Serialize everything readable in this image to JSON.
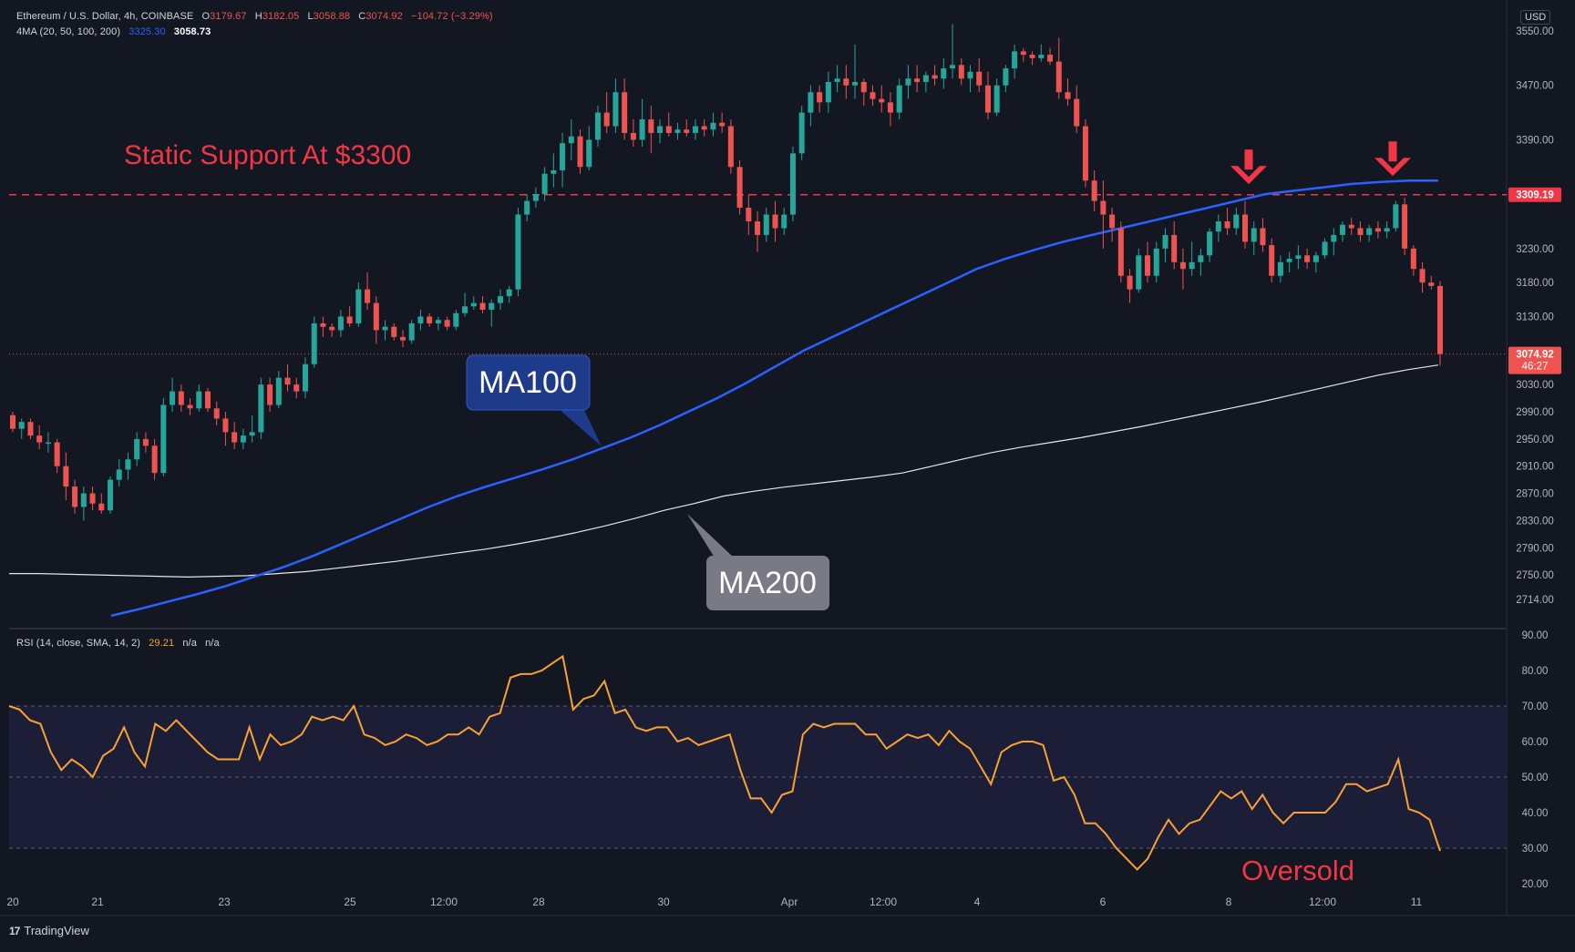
{
  "header": {
    "symbol": "Ethereum / U.S. Dollar, 4h, COINBASE",
    "o_label": "O",
    "o": "3179.67",
    "h_label": "H",
    "h": "3182.05",
    "l_label": "L",
    "l": "3058.88",
    "c_label": "C",
    "c": "3074.92",
    "change": "−104.72 (−3.29%)",
    "ma_label": "4MA (20, 50, 100, 200)",
    "ma100_value": "3325.30",
    "ma200_value": "3058.73",
    "rsi_label": "RSI (14, close, SMA, 14, 2)",
    "rsi_value": "29.21",
    "rsi_na1": "n/a",
    "rsi_na2": "n/a",
    "currency": "USD"
  },
  "footer": {
    "brand": "TradingView",
    "logo": "17"
  },
  "colors": {
    "bg": "#131722",
    "up": "#26a69a",
    "down": "#ef5350",
    "ma100": "#2962ff",
    "ma200": "#e6e6e6",
    "rsi": "#f7a233",
    "annot_red": "#f23645"
  },
  "chart_data": [
    {
      "type": "candlestick",
      "title": "Ethereum / U.S. Dollar, 4h, COINBASE",
      "price_axis": {
        "ticks": [
          3550,
          3470,
          3390,
          3309.19,
          3230,
          3180,
          3130,
          3074.92,
          3030,
          2990,
          2950,
          2910,
          2870,
          2830,
          2790,
          2750,
          2714
        ],
        "tick_labels": [
          "3550.00",
          "3470.00",
          "3390.00",
          "3309.19",
          "3230.00",
          "3180.00",
          "3130.00",
          "3074.92",
          "3030.00",
          "2990.00",
          "2950.00",
          "2910.00",
          "2870.00",
          "2830.00",
          "2790.00",
          "2750.00",
          "2714.00"
        ]
      },
      "time_axis": {
        "labels": [
          "20",
          "21",
          "23",
          "25",
          "12:00",
          "28",
          "30",
          "Apr",
          "12:00",
          "4",
          "6",
          "8",
          "12:00",
          "11"
        ]
      },
      "highlighted_prices": {
        "support": "3309.19",
        "last": "3074.92",
        "countdown": "46:27"
      },
      "candles": [
        [
          2985,
          2990,
          2960,
          2965
        ],
        [
          2965,
          2980,
          2950,
          2975
        ],
        [
          2975,
          2980,
          2950,
          2955
        ],
        [
          2955,
          2970,
          2935,
          2945
        ],
        [
          2945,
          2960,
          2930,
          2945
        ],
        [
          2945,
          2950,
          2900,
          2910
        ],
        [
          2910,
          2930,
          2860,
          2880
        ],
        [
          2880,
          2890,
          2840,
          2850
        ],
        [
          2850,
          2880,
          2830,
          2870
        ],
        [
          2870,
          2880,
          2845,
          2855
        ],
        [
          2855,
          2870,
          2840,
          2845
        ],
        [
          2845,
          2895,
          2840,
          2890
        ],
        [
          2890,
          2920,
          2880,
          2905
        ],
        [
          2905,
          2930,
          2890,
          2920
        ],
        [
          2920,
          2960,
          2910,
          2950
        ],
        [
          2950,
          2960,
          2930,
          2940
        ],
        [
          2940,
          2950,
          2890,
          2900
        ],
        [
          2900,
          3010,
          2895,
          3000
        ],
        [
          3000,
          3040,
          2990,
          3020
        ],
        [
          3020,
          3030,
          2990,
          3000
        ],
        [
          3000,
          3010,
          2985,
          2995
        ],
        [
          2995,
          3030,
          2990,
          3020
        ],
        [
          3020,
          3025,
          2990,
          2995
        ],
        [
          2995,
          3005,
          2970,
          2980
        ],
        [
          2980,
          2990,
          2940,
          2960
        ],
        [
          2960,
          2975,
          2935,
          2945
        ],
        [
          2945,
          2965,
          2935,
          2955
        ],
        [
          2955,
          2985,
          2945,
          2960
        ],
        [
          2960,
          3040,
          2950,
          3030
        ],
        [
          3030,
          3040,
          2990,
          3000
        ],
        [
          3000,
          3050,
          2995,
          3040
        ],
        [
          3040,
          3060,
          3020,
          3030
        ],
        [
          3030,
          3040,
          3010,
          3020
        ],
        [
          3020,
          3070,
          3010,
          3060
        ],
        [
          3060,
          3130,
          3055,
          3120
        ],
        [
          3120,
          3130,
          3100,
          3115
        ],
        [
          3115,
          3120,
          3100,
          3110
        ],
        [
          3110,
          3140,
          3100,
          3130
        ],
        [
          3130,
          3145,
          3115,
          3120
        ],
        [
          3120,
          3180,
          3115,
          3170
        ],
        [
          3170,
          3195,
          3140,
          3150
        ],
        [
          3150,
          3160,
          3090,
          3110
        ],
        [
          3110,
          3125,
          3095,
          3115
        ],
        [
          3115,
          3120,
          3095,
          3100
        ],
        [
          3100,
          3110,
          3085,
          3095
        ],
        [
          3095,
          3125,
          3090,
          3120
        ],
        [
          3120,
          3140,
          3110,
          3130
        ],
        [
          3130,
          3135,
          3115,
          3120
        ],
        [
          3120,
          3130,
          3110,
          3125
        ],
        [
          3125,
          3130,
          3110,
          3115
        ],
        [
          3115,
          3140,
          3110,
          3135
        ],
        [
          3135,
          3165,
          3130,
          3145
        ],
        [
          3145,
          3160,
          3140,
          3150
        ],
        [
          3150,
          3160,
          3135,
          3140
        ],
        [
          3140,
          3155,
          3115,
          3150
        ],
        [
          3150,
          3170,
          3140,
          3160
        ],
        [
          3160,
          3175,
          3150,
          3170
        ],
        [
          3170,
          3290,
          3160,
          3280
        ],
        [
          3280,
          3310,
          3270,
          3300
        ],
        [
          3300,
          3320,
          3290,
          3310
        ],
        [
          3310,
          3350,
          3300,
          3340
        ],
        [
          3340,
          3370,
          3320,
          3345
        ],
        [
          3345,
          3400,
          3320,
          3385
        ],
        [
          3385,
          3420,
          3360,
          3395
        ],
        [
          3395,
          3405,
          3340,
          3350
        ],
        [
          3350,
          3410,
          3345,
          3390
        ],
        [
          3390,
          3440,
          3380,
          3430
        ],
        [
          3430,
          3460,
          3400,
          3410
        ],
        [
          3410,
          3480,
          3400,
          3460
        ],
        [
          3460,
          3480,
          3390,
          3400
        ],
        [
          3400,
          3420,
          3380,
          3390
        ],
        [
          3390,
          3450,
          3380,
          3420
        ],
        [
          3420,
          3440,
          3370,
          3400
        ],
        [
          3400,
          3420,
          3385,
          3410
        ],
        [
          3410,
          3430,
          3395,
          3400
        ],
        [
          3400,
          3415,
          3390,
          3405
        ],
        [
          3405,
          3420,
          3395,
          3400
        ],
        [
          3400,
          3420,
          3390,
          3410
        ],
        [
          3410,
          3420,
          3395,
          3405
        ],
        [
          3405,
          3430,
          3395,
          3415
        ],
        [
          3415,
          3430,
          3400,
          3410
        ],
        [
          3410,
          3420,
          3340,
          3350
        ],
        [
          3350,
          3360,
          3280,
          3290
        ],
        [
          3290,
          3310,
          3250,
          3270
        ],
        [
          3270,
          3285,
          3225,
          3250
        ],
        [
          3250,
          3290,
          3240,
          3280
        ],
        [
          3280,
          3300,
          3240,
          3260
        ],
        [
          3260,
          3290,
          3250,
          3280
        ],
        [
          3280,
          3380,
          3270,
          3370
        ],
        [
          3370,
          3440,
          3360,
          3430
        ],
        [
          3430,
          3470,
          3410,
          3460
        ],
        [
          3460,
          3470,
          3430,
          3445
        ],
        [
          3445,
          3490,
          3430,
          3475
        ],
        [
          3475,
          3500,
          3460,
          3480
        ],
        [
          3480,
          3500,
          3450,
          3470
        ],
        [
          3470,
          3530,
          3450,
          3475
        ],
        [
          3475,
          3480,
          3440,
          3460
        ],
        [
          3460,
          3470,
          3440,
          3450
        ],
        [
          3450,
          3470,
          3430,
          3445
        ],
        [
          3445,
          3460,
          3410,
          3430
        ],
        [
          3430,
          3480,
          3420,
          3470
        ],
        [
          3470,
          3500,
          3450,
          3480
        ],
        [
          3480,
          3500,
          3460,
          3475
        ],
        [
          3475,
          3490,
          3460,
          3485
        ],
        [
          3485,
          3500,
          3470,
          3480
        ],
        [
          3480,
          3510,
          3465,
          3495
        ],
        [
          3495,
          3560,
          3480,
          3500
        ],
        [
          3500,
          3510,
          3470,
          3480
        ],
        [
          3480,
          3500,
          3460,
          3490
        ],
        [
          3490,
          3510,
          3460,
          3470
        ],
        [
          3470,
          3490,
          3420,
          3430
        ],
        [
          3430,
          3480,
          3425,
          3470
        ],
        [
          3470,
          3500,
          3460,
          3495
        ],
        [
          3495,
          3530,
          3480,
          3520
        ],
        [
          3520,
          3525,
          3505,
          3515
        ],
        [
          3515,
          3520,
          3500,
          3510
        ],
        [
          3510,
          3530,
          3505,
          3515
        ],
        [
          3515,
          3525,
          3500,
          3505
        ],
        [
          3505,
          3540,
          3450,
          3460
        ],
        [
          3460,
          3480,
          3440,
          3450
        ],
        [
          3450,
          3470,
          3400,
          3410
        ],
        [
          3410,
          3420,
          3320,
          3330
        ],
        [
          3330,
          3345,
          3285,
          3300
        ],
        [
          3300,
          3330,
          3230,
          3280
        ],
        [
          3280,
          3290,
          3240,
          3260
        ],
        [
          3260,
          3270,
          3180,
          3190
        ],
        [
          3190,
          3200,
          3150,
          3170
        ],
        [
          3170,
          3230,
          3165,
          3220
        ],
        [
          3220,
          3240,
          3180,
          3190
        ],
        [
          3190,
          3240,
          3180,
          3230
        ],
        [
          3230,
          3260,
          3210,
          3250
        ],
        [
          3250,
          3270,
          3200,
          3210
        ],
        [
          3210,
          3230,
          3170,
          3200
        ],
        [
          3200,
          3240,
          3190,
          3210
        ],
        [
          3210,
          3230,
          3190,
          3220
        ],
        [
          3220,
          3260,
          3210,
          3255
        ],
        [
          3255,
          3280,
          3240,
          3270
        ],
        [
          3270,
          3290,
          3250,
          3260
        ],
        [
          3260,
          3290,
          3250,
          3280
        ],
        [
          3280,
          3300,
          3230,
          3240
        ],
        [
          3240,
          3270,
          3220,
          3260
        ],
        [
          3260,
          3275,
          3225,
          3235
        ],
        [
          3235,
          3245,
          3180,
          3190
        ],
        [
          3190,
          3220,
          3180,
          3210
        ],
        [
          3210,
          3225,
          3195,
          3215
        ],
        [
          3215,
          3235,
          3200,
          3220
        ],
        [
          3220,
          3230,
          3200,
          3210
        ],
        [
          3210,
          3225,
          3195,
          3220
        ],
        [
          3220,
          3245,
          3215,
          3240
        ],
        [
          3240,
          3260,
          3220,
          3250
        ],
        [
          3250,
          3270,
          3240,
          3265
        ],
        [
          3265,
          3275,
          3250,
          3260
        ],
        [
          3260,
          3270,
          3240,
          3250
        ],
        [
          3250,
          3265,
          3240,
          3260
        ],
        [
          3260,
          3270,
          3245,
          3255
        ],
        [
          3255,
          3270,
          3245,
          3260
        ],
        [
          3260,
          3300,
          3255,
          3295
        ],
        [
          3295,
          3305,
          3220,
          3230
        ],
        [
          3230,
          3235,
          3190,
          3200
        ],
        [
          3200,
          3210,
          3165,
          3180
        ],
        [
          3180,
          3190,
          3170,
          3175
        ],
        [
          3175,
          3182,
          3058,
          3074.92
        ]
      ],
      "ma100": [
        2690,
        2700,
        2711,
        2722,
        2734,
        2748,
        2762,
        2778,
        2796,
        2814,
        2832,
        2850,
        2866,
        2880,
        2893,
        2906,
        2920,
        2936,
        2952,
        2970,
        2990,
        3010,
        3032,
        3056,
        3080,
        3100,
        3120,
        3140,
        3160,
        3180,
        3200,
        3215,
        3228,
        3240,
        3250,
        3260,
        3270,
        3280,
        3290,
        3300,
        3310,
        3315,
        3320,
        3325,
        3328,
        3330,
        3330
      ],
      "ma200": [
        2752,
        2752,
        2751,
        2750,
        2749,
        2748,
        2747,
        2748,
        2749,
        2752,
        2755,
        2760,
        2765,
        2770,
        2776,
        2782,
        2788,
        2795,
        2803,
        2812,
        2822,
        2833,
        2845,
        2855,
        2866,
        2873,
        2879,
        2884,
        2889,
        2894,
        2900,
        2910,
        2920,
        2930,
        2938,
        2945,
        2952,
        2960,
        2968,
        2977,
        2986,
        2995,
        3004,
        3014,
        3024,
        3034,
        3044,
        3052,
        3058.73
      ],
      "annotations": {
        "support_text": "Static Support At $3300",
        "ma100_text": "MA100",
        "ma200_text": "MA200",
        "arrows": [
          {
            "at_price": 3318
          },
          {
            "at_price": 3330
          }
        ]
      }
    },
    {
      "type": "line",
      "title": "RSI (14, close, SMA, 14, 2)",
      "ylim": [
        20,
        90
      ],
      "ticks": [
        90,
        80,
        70,
        60,
        50,
        40,
        30,
        20
      ],
      "tick_labels": [
        "90.00",
        "80.00",
        "70.00",
        "60.00",
        "50.00",
        "40.00",
        "30.00",
        "20.00"
      ],
      "bands": {
        "upper": 70,
        "middle": 50,
        "lower": 30
      },
      "values": [
        70,
        69,
        66,
        65,
        57,
        52,
        55,
        53,
        50,
        56,
        58,
        64,
        57,
        53,
        65,
        63,
        66,
        63,
        60,
        57,
        55,
        55,
        55,
        64,
        55,
        62,
        59,
        60,
        62,
        67,
        66,
        67,
        66,
        70,
        62,
        61,
        59,
        60,
        62,
        61,
        59,
        60,
        62,
        62,
        64,
        62,
        67,
        68,
        78,
        79,
        79,
        80,
        82,
        84,
        69,
        72,
        73,
        77,
        68,
        69,
        64,
        63,
        64,
        64,
        60,
        61,
        59,
        60,
        61,
        62,
        52,
        44,
        44,
        40,
        45,
        46,
        62,
        65,
        64,
        65,
        65,
        65,
        62,
        62,
        58,
        60,
        62,
        61,
        62,
        59,
        63,
        60,
        58,
        53,
        48,
        57,
        59,
        60,
        60,
        59,
        49,
        50,
        45,
        37,
        37,
        34,
        30,
        27,
        24,
        27,
        33,
        38,
        34,
        37,
        38,
        42,
        46,
        44,
        46,
        41,
        45,
        40,
        37,
        40,
        40,
        40,
        40,
        43,
        48,
        48,
        46,
        47,
        48,
        55,
        41,
        40,
        38,
        29.21
      ],
      "annotations": {
        "oversold_text": "Oversold"
      }
    }
  ]
}
